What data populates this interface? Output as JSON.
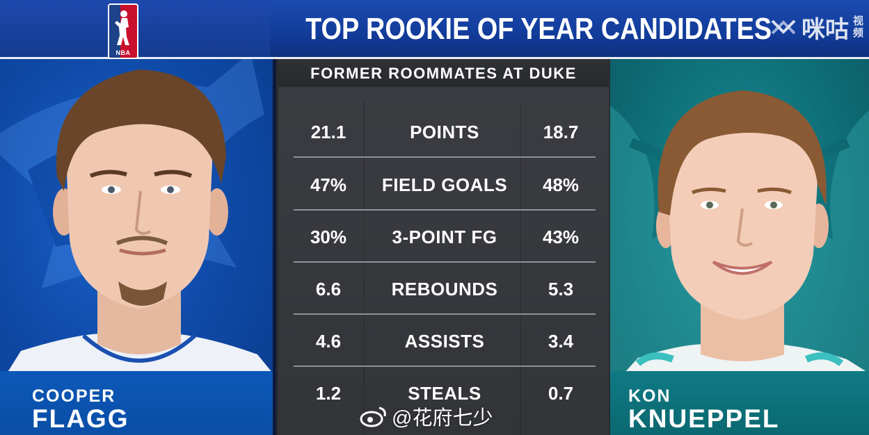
{
  "header": {
    "logo_text": "NBA",
    "title": "TOP ROOKIE OF YEAR CANDIDATES",
    "watermark": {
      "brand": "咪咕",
      "sub1": "视",
      "sub2": "频"
    }
  },
  "left_player": {
    "first_name": "COOPER",
    "last_name": "FLAGG",
    "team_color": "#0f4aa8"
  },
  "right_player": {
    "first_name": "KON",
    "last_name": "KNUEPPEL",
    "team_color": "#0f6f78"
  },
  "stats": {
    "subtitle": "FORMER ROOMMATES AT DUKE",
    "rows": [
      {
        "left": "21.1",
        "label": "POINTS",
        "right": "18.7"
      },
      {
        "left": "47%",
        "label": "FIELD GOALS",
        "right": "48%"
      },
      {
        "left": "30%",
        "label": "3-POINT FG",
        "right": "43%"
      },
      {
        "left": "6.6",
        "label": "REBOUNDS",
        "right": "5.3"
      },
      {
        "left": "4.6",
        "label": "ASSISTS",
        "right": "3.4"
      },
      {
        "left": "1.2",
        "label": "STEALS",
        "right": "0.7"
      }
    ]
  },
  "overlay_watermark": {
    "text": "@花府七少",
    "icon": "weibo-icon"
  }
}
